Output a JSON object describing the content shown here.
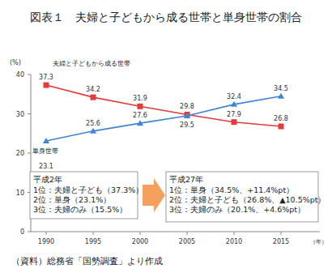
{
  "chart_data": {
    "type": "line",
    "title": "図表１　夫婦と子どもから成る世帯と単身世帯の割合",
    "y_label": "(%)",
    "x_label": "（年）",
    "categories": [
      "1990",
      "1995",
      "2000",
      "2005",
      "2010",
      "2015"
    ],
    "series": [
      {
        "name": "夫婦と子どもから成る世帯",
        "color": "#e23b3b",
        "marker": "square",
        "values": [
          37.3,
          34.2,
          31.9,
          29.8,
          27.9,
          26.8
        ]
      },
      {
        "name": "単身世帯",
        "color": "#3d85d6",
        "marker": "triangle",
        "values": [
          23.1,
          25.6,
          27.6,
          29.5,
          32.4,
          34.5
        ]
      }
    ],
    "ylim": [
      0,
      40
    ],
    "yticks": [
      0,
      10,
      20,
      30,
      40
    ],
    "grid": false,
    "data_labels": true,
    "annotations": [
      {
        "title": "平成2年",
        "lines": [
          "1位：夫婦と子ども（37.3%）",
          "2位：単身（23.1%）",
          "3位：夫婦のみ（15.5%）"
        ]
      },
      {
        "title": "平成27年",
        "lines": [
          "1位：単身（34.5%、+11.4%pt）",
          "2位：夫婦と子ども（26.8%、▲10.5%pt）",
          "3位：夫婦のみ（20.1%、+4.6%pt）"
        ]
      }
    ],
    "source": "（資料）総務省「国勢調査」より作成"
  }
}
